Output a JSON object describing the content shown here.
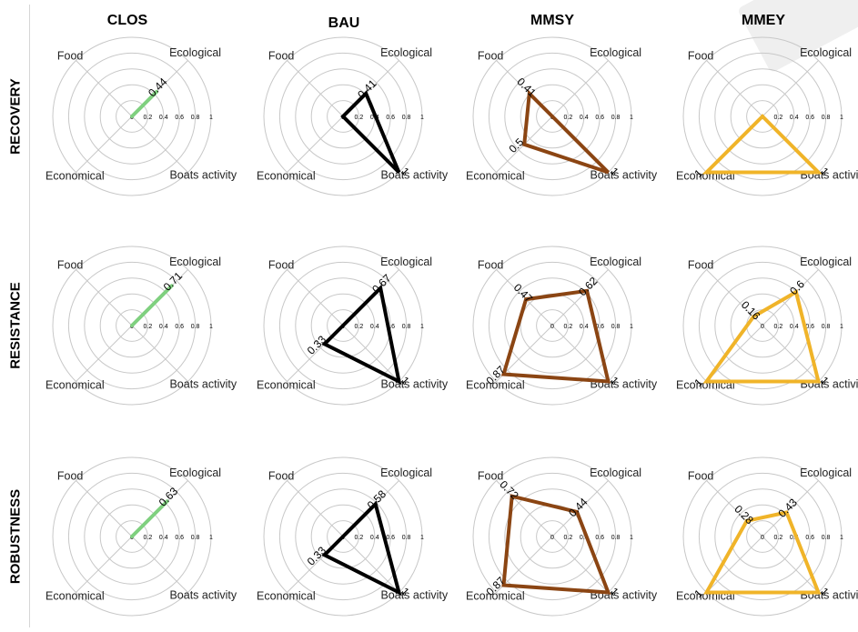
{
  "figure": {
    "columns": [
      "CLOS",
      "BAU",
      "MMSY",
      "MMEY"
    ],
    "rows": [
      "RECOVERY",
      "RESISTANCE",
      "ROBUSTNESS"
    ],
    "axis_labels": {
      "food": "Food",
      "ecological": "Ecological",
      "economical": "Economical",
      "boats": "Boats activity"
    },
    "tick_labels": [
      "0",
      "0.2",
      "0.4",
      "0.6",
      "0.8",
      "1"
    ]
  },
  "chart_data": {
    "type": "radar",
    "axes": [
      "Ecological",
      "Food",
      "Economical",
      "Boats activity"
    ],
    "r_range": [
      0,
      1
    ],
    "grid": true,
    "colors": {
      "CLOS": "#7fd07f",
      "BAU": "#000000",
      "MMSY": "#8b4513",
      "MMEY": "#f0b429",
      "grid": "#c8c8c8"
    },
    "panels": [
      {
        "row": "RECOVERY",
        "column": "CLOS",
        "values": {
          "Ecological": 0.44,
          "Food": 0,
          "Economical": 0,
          "Boats activity": 0
        },
        "labels": {
          "Ecological": "0.44"
        }
      },
      {
        "row": "RECOVERY",
        "column": "BAU",
        "values": {
          "Ecological": 0.41,
          "Food": 0,
          "Economical": 0,
          "Boats activity": 1
        },
        "labels": {
          "Ecological": "0.41",
          "Boats activity": "1"
        }
      },
      {
        "row": "RECOVERY",
        "column": "MMSY",
        "values": {
          "Ecological": 0,
          "Food": 0.41,
          "Economical": 0.5,
          "Boats activity": 1
        },
        "labels": {
          "Food": "0.41",
          "Economical": "0.5",
          "Boats activity": "1"
        }
      },
      {
        "row": "RECOVERY",
        "column": "MMEY",
        "values": {
          "Ecological": 0,
          "Food": 0,
          "Economical": 1,
          "Boats activity": 1
        },
        "labels": {
          "Economical": "1",
          "Boats activity": "1"
        }
      },
      {
        "row": "RESISTANCE",
        "column": "CLOS",
        "values": {
          "Ecological": 0.71,
          "Food": 0,
          "Economical": 0,
          "Boats activity": 0
        },
        "labels": {
          "Ecological": "0.71"
        }
      },
      {
        "row": "RESISTANCE",
        "column": "BAU",
        "values": {
          "Ecological": 0.67,
          "Food": 0,
          "Economical": 0.33,
          "Boats activity": 1
        },
        "labels": {
          "Ecological": "0.67",
          "Economical": "0.33",
          "Boats activity": "1"
        }
      },
      {
        "row": "RESISTANCE",
        "column": "MMSY",
        "values": {
          "Ecological": 0.62,
          "Food": 0.47,
          "Economical": 0.87,
          "Boats activity": 1
        },
        "labels": {
          "Ecological": "0.62",
          "Food": "0.47",
          "Economical": "0.87",
          "Boats activity": "1"
        }
      },
      {
        "row": "RESISTANCE",
        "column": "MMEY",
        "values": {
          "Ecological": 0.6,
          "Food": 0.16,
          "Economical": 1,
          "Boats activity": 1
        },
        "labels": {
          "Ecological": "0.6",
          "Food": "0.16",
          "Economical": "1",
          "Boats activity": "1"
        }
      },
      {
        "row": "ROBUSTNESS",
        "column": "CLOS",
        "values": {
          "Ecological": 0.63,
          "Food": 0,
          "Economical": 0,
          "Boats activity": 0
        },
        "labels": {
          "Ecological": "0.63"
        }
      },
      {
        "row": "ROBUSTNESS",
        "column": "BAU",
        "values": {
          "Ecological": 0.58,
          "Food": 0,
          "Economical": 0.33,
          "Boats activity": 1
        },
        "labels": {
          "Ecological": "0.58",
          "Economical": "0.33",
          "Boats activity": "1"
        }
      },
      {
        "row": "ROBUSTNESS",
        "column": "MMSY",
        "values": {
          "Ecological": 0.44,
          "Food": 0.72,
          "Economical": 0.87,
          "Boats activity": 1
        },
        "labels": {
          "Ecological": "0.44",
          "Food": "0.72",
          "Economical": "0.87",
          "Boats activity": "1"
        }
      },
      {
        "row": "ROBUSTNESS",
        "column": "MMEY",
        "values": {
          "Ecological": 0.43,
          "Food": 0.28,
          "Economical": 1,
          "Boats activity": 1
        },
        "labels": {
          "Ecological": "0.43",
          "Food": "0.28",
          "Economical": "1",
          "Boats activity": "1"
        }
      }
    ]
  }
}
